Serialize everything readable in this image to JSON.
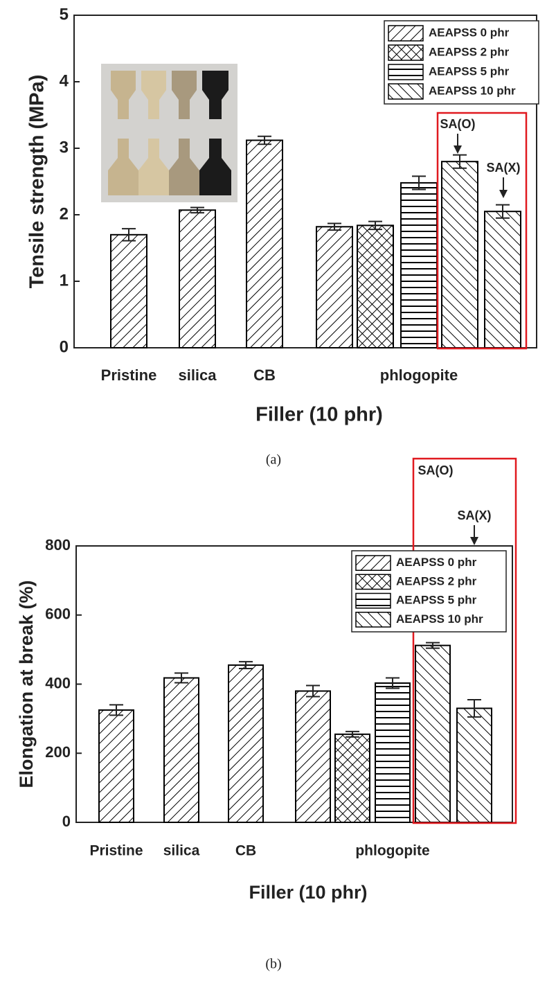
{
  "chart_data": [
    {
      "type": "bar",
      "caption": "(a)",
      "y_label": "Tensile strength (MPa)",
      "x_label": "Filler (10 phr)",
      "categories": [
        "Pristine",
        "silica",
        "CB",
        null,
        null,
        "phlogopite",
        null,
        null
      ],
      "ylim": [
        0,
        5
      ],
      "yticks": [
        0,
        1,
        2,
        3,
        4,
        5
      ],
      "legend": "upper right",
      "highlight_color": "#e0191f",
      "series": [
        {
          "name": "AEAPSS 0 phr",
          "pattern": "diagonal",
          "color": "#000000",
          "values": [
            1.7,
            2.07,
            3.12,
            1.82,
            null,
            null,
            null,
            null
          ],
          "errors": [
            0.09,
            0.04,
            0.06,
            0.05,
            null,
            null,
            null,
            null
          ]
        },
        {
          "name": "AEAPSS 2 phr",
          "pattern": "cross",
          "color": "#000000",
          "values": [
            null,
            null,
            null,
            null,
            1.84,
            null,
            null,
            null
          ],
          "errors": [
            null,
            null,
            null,
            null,
            0.06,
            null,
            null,
            null
          ]
        },
        {
          "name": "AEAPSS 5 phr",
          "pattern": "horizontal",
          "color": "#000000",
          "values": [
            null,
            null,
            null,
            null,
            null,
            2.48,
            null,
            null
          ],
          "errors": [
            null,
            null,
            null,
            null,
            null,
            0.1,
            null,
            null
          ]
        },
        {
          "name": "AEAPSS 10 phr",
          "pattern": "backslash",
          "color": "#000000",
          "values": [
            null,
            null,
            null,
            null,
            null,
            null,
            2.8,
            2.05
          ],
          "errors": [
            null,
            null,
            null,
            null,
            null,
            null,
            0.1,
            0.1
          ]
        }
      ],
      "annotations": [
        "SA(O)",
        "SA(X)"
      ]
    },
    {
      "type": "bar",
      "caption": "(b)",
      "y_label": "Elongation at break (%)",
      "x_label": "Filler (10 phr)",
      "categories": [
        "Pristine",
        "silica",
        "CB",
        null,
        null,
        "phlogopite",
        null,
        null
      ],
      "ylim": [
        0,
        800
      ],
      "yticks": [
        0,
        200,
        400,
        600,
        800
      ],
      "legend": "upper right",
      "highlight_color": "#e0191f",
      "series": [
        {
          "name": "AEAPSS 0 phr",
          "pattern": "diagonal",
          "color": "#000000",
          "values": [
            325,
            418,
            455,
            380,
            null,
            null,
            null,
            null
          ],
          "errors": [
            15,
            14,
            10,
            16,
            null,
            null,
            null,
            null
          ]
        },
        {
          "name": "AEAPSS 2 phr",
          "pattern": "cross",
          "color": "#000000",
          "values": [
            null,
            null,
            null,
            null,
            255,
            null,
            null,
            null
          ],
          "errors": [
            null,
            null,
            null,
            null,
            8,
            null,
            null,
            null
          ]
        },
        {
          "name": "AEAPSS 5 phr",
          "pattern": "horizontal",
          "color": "#000000",
          "values": [
            null,
            null,
            null,
            null,
            null,
            403,
            null,
            null
          ],
          "errors": [
            null,
            null,
            null,
            null,
            null,
            15,
            null,
            null
          ]
        },
        {
          "name": "AEAPSS 10 phr",
          "pattern": "backslash",
          "color": "#000000",
          "values": [
            null,
            null,
            null,
            null,
            null,
            null,
            512,
            330
          ],
          "errors": [
            null,
            null,
            null,
            null,
            null,
            null,
            8,
            25
          ]
        }
      ],
      "annotations": [
        "SA(O)",
        "SA(X)"
      ]
    }
  ]
}
